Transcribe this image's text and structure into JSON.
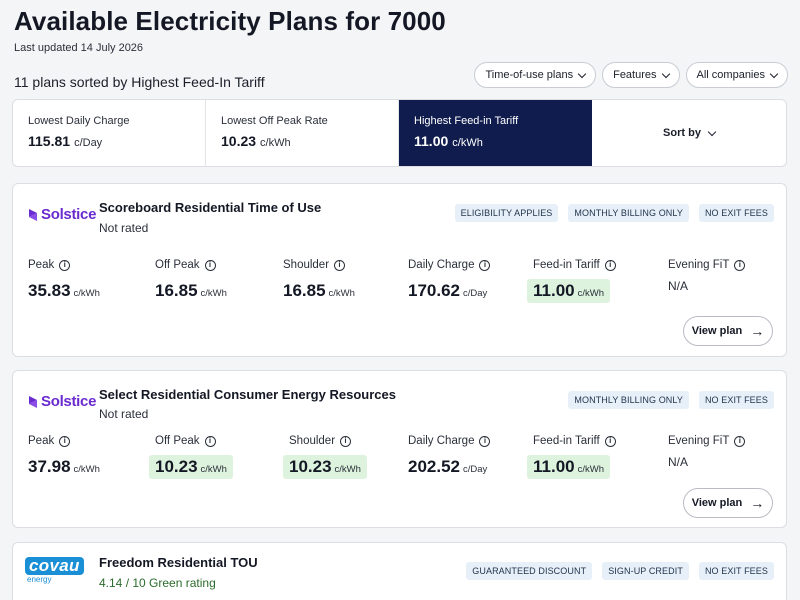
{
  "header": {
    "title": "Available Electricity Plans for 7000",
    "updated": "Last updated 14 July 2026",
    "count": "11 plans sorted by Highest Feed-In Tariff"
  },
  "filters": [
    {
      "label": "Time-of-use plans"
    },
    {
      "label": "Features"
    },
    {
      "label": "All companies"
    }
  ],
  "sortbar": {
    "tabs": [
      {
        "label": "Lowest Daily Charge",
        "value": "115.81",
        "unit": "c/Day"
      },
      {
        "label": "Lowest Off Peak Rate",
        "value": "10.23",
        "unit": "c/kWh"
      },
      {
        "label": "Highest Feed-in Tariff",
        "value": "11.00",
        "unit": "c/kWh"
      }
    ],
    "active_index": 2,
    "sort_label": "Sort by"
  },
  "plans": [
    {
      "brand": "Solstice",
      "name": "Scoreboard Residential Time of Use",
      "rating": "Not rated",
      "badges": [
        "ELIGIBILITY APPLIES",
        "MONTHLY BILLING ONLY",
        "NO EXIT FEES"
      ],
      "rates": [
        {
          "label": "Peak",
          "value": "35.83",
          "unit": "c/kWh",
          "highlight": false
        },
        {
          "label": "Off Peak",
          "value": "16.85",
          "unit": "c/kWh",
          "highlight": false
        },
        {
          "label": "Shoulder",
          "value": "16.85",
          "unit": "c/kWh",
          "highlight": false
        },
        {
          "label": "Daily Charge",
          "value": "170.62",
          "unit": "c/Day",
          "highlight": false
        },
        {
          "label": "Feed-in Tariff",
          "value": "11.00",
          "unit": "c/kWh",
          "highlight": true
        },
        {
          "label": "Evening FiT",
          "value": "N/A"
        }
      ],
      "view_label": "View plan"
    },
    {
      "brand": "Solstice",
      "name": "Select Residential Consumer Energy Resources",
      "rating": "Not rated",
      "badges": [
        "MONTHLY BILLING ONLY",
        "NO EXIT FEES"
      ],
      "rates": [
        {
          "label": "Peak",
          "value": "37.98",
          "unit": "c/kWh",
          "highlight": false
        },
        {
          "label": "Off Peak",
          "value": "10.23",
          "unit": "c/kWh",
          "highlight": true
        },
        {
          "label": "Shoulder",
          "value": "10.23",
          "unit": "c/kWh",
          "highlight": true
        },
        {
          "label": "Daily Charge",
          "value": "202.52",
          "unit": "c/Day",
          "highlight": false
        },
        {
          "label": "Feed-in Tariff",
          "value": "11.00",
          "unit": "c/kWh",
          "highlight": true
        },
        {
          "label": "Evening FiT",
          "value": "N/A"
        }
      ],
      "view_label": "View plan"
    },
    {
      "brand": "covau",
      "brand_sub": "energy",
      "name": "Freedom Residential TOU",
      "rating": "4.14 / 10 Green rating",
      "badges": [
        "GUARANTEED DISCOUNT",
        "SIGN-UP CREDIT",
        "NO EXIT FEES"
      ]
    }
  ],
  "colors": {
    "active_tab": "#0f1c4d",
    "highlight": "#ddf3dd",
    "badge_bg": "#e7f0f9",
    "solstice": "#6a2bd0",
    "covau": "#1a8fd6"
  }
}
